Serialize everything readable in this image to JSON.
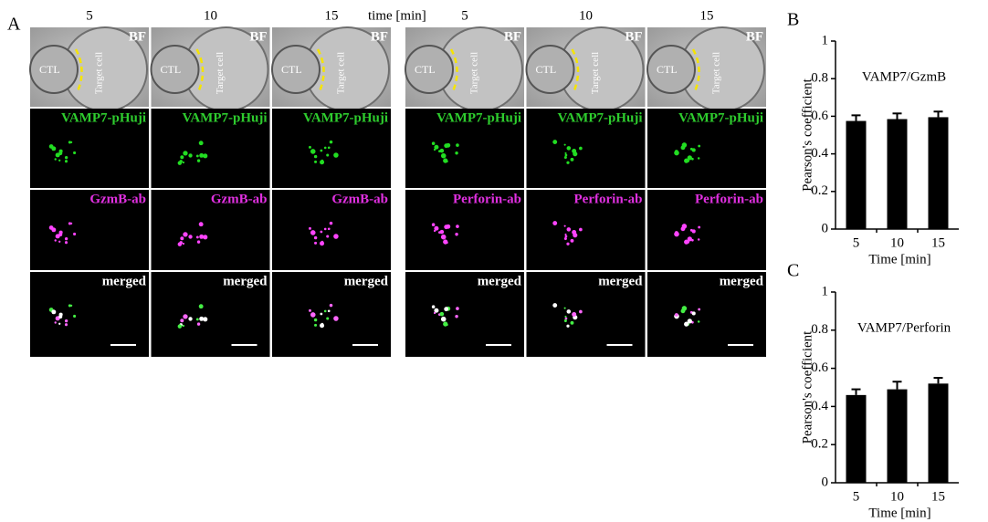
{
  "panel_a": {
    "label": "A",
    "time_axis": "time [min]",
    "columns": [
      {
        "time": "5",
        "bf": "BF",
        "ctl": "CTL",
        "target": "Target cell",
        "green": "VAMP7-pHuji",
        "magenta": "GzmB-ab",
        "merged": "merged"
      },
      {
        "time": "10",
        "bf": "BF",
        "ctl": "CTL",
        "target": "Target cell",
        "green": "VAMP7-pHuji",
        "magenta": "GzmB-ab",
        "merged": "merged"
      },
      {
        "time": "15",
        "bf": "BF",
        "ctl": "CTL",
        "target": "Target cell",
        "green": "VAMP7-pHuji",
        "magenta": "GzmB-ab",
        "merged": "merged"
      },
      {
        "time": "5",
        "bf": "BF",
        "ctl": "CTL",
        "target": "Target cell",
        "green": "VAMP7-pHuji",
        "magenta": "Perforin-ab",
        "merged": "merged"
      },
      {
        "time": "10",
        "bf": "BF",
        "ctl": "CTL",
        "target": "Target cell",
        "green": "VAMP7-pHuji",
        "magenta": "Perforin-ab",
        "merged": "merged"
      },
      {
        "time": "15",
        "bf": "BF",
        "ctl": "CTL",
        "target": "Target cell",
        "green": "VAMP7-pHuji",
        "magenta": "Perforin-ab",
        "merged": "merged"
      }
    ]
  },
  "chart_data": [
    {
      "type": "bar",
      "panel": "B",
      "annotation": "VAMP7/GzmB",
      "x_label": "Time [min]",
      "y_label": "Pearson's coefficient",
      "categories": [
        "5",
        "10",
        "15"
      ],
      "values": [
        0.575,
        0.585,
        0.595
      ],
      "errors": [
        0.03,
        0.03,
        0.03
      ],
      "color": "#000000",
      "ylim": [
        0,
        1
      ],
      "yticks": [
        0,
        0.2,
        0.4,
        0.6,
        0.8,
        1
      ]
    },
    {
      "type": "bar",
      "panel": "C",
      "annotation": "VAMP7/Perforin",
      "x_label": "Time [min]",
      "y_label": "Pearson's coefficient",
      "categories": [
        "5",
        "10",
        "15"
      ],
      "values": [
        0.46,
        0.49,
        0.52
      ],
      "errors": [
        0.03,
        0.04,
        0.03
      ],
      "color": "#000000",
      "ylim": [
        0,
        1
      ],
      "yticks": [
        0,
        0.2,
        0.4,
        0.6,
        0.8,
        1
      ]
    }
  ]
}
